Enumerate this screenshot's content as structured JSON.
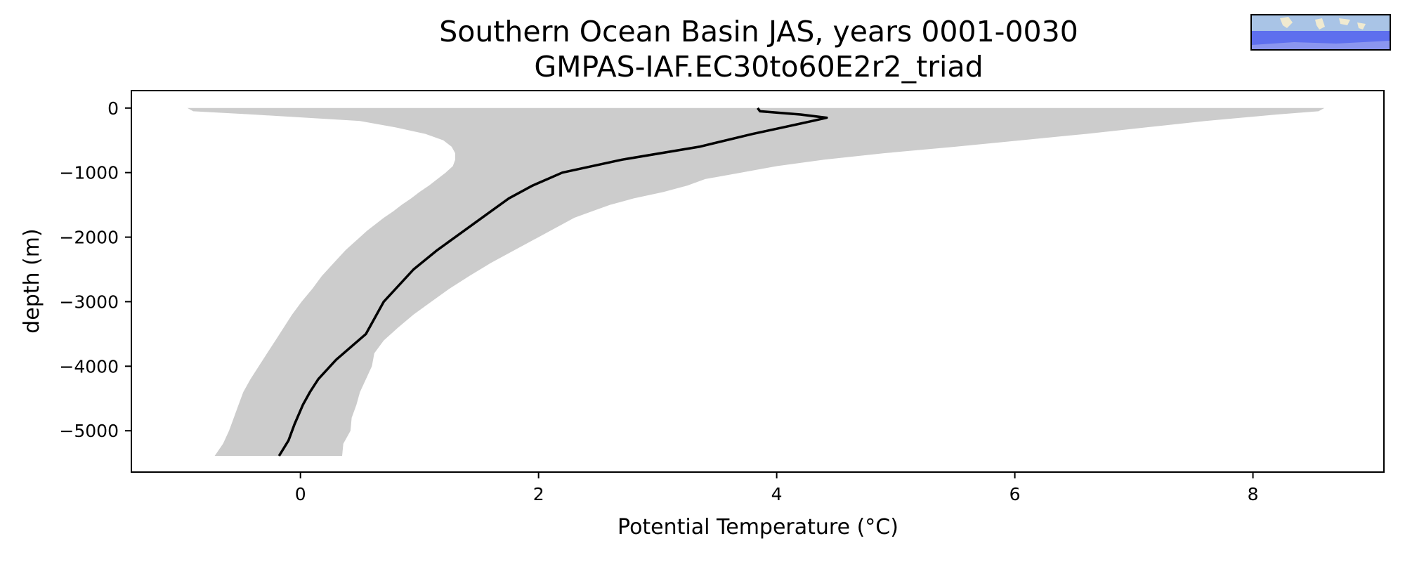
{
  "chart_data": {
    "type": "line",
    "title": "Southern Ocean Basin JAS, years 0001-0030",
    "subtitle": "GMPAS-IAF.EC30to60E2r2_triad",
    "xlabel": "Potential Temperature (°C)",
    "ylabel": "depth (m)",
    "xlim": [
      -1.42,
      9.1
    ],
    "ylim": [
      -5640,
      270
    ],
    "xticks": [
      0,
      2,
      4,
      6,
      8
    ],
    "yticks": [
      0,
      -1000,
      -2000,
      -3000,
      -4000,
      -5000
    ],
    "grid": false,
    "colors": {
      "mean_line": "#000000",
      "band": "#cccccc"
    },
    "series": [
      {
        "type": "line",
        "depth": [
          0,
          -50,
          -100,
          -150,
          -200,
          -300,
          -400,
          -600,
          -800,
          -1000,
          -1200,
          -1400,
          -1600,
          -1800,
          -2000,
          -2200,
          -2500,
          -3000,
          -3500,
          -3900,
          -4200,
          -4400,
          -4600,
          -4900,
          -5150,
          -5390
        ],
        "temperature": [
          3.84,
          3.86,
          4.2,
          4.42,
          4.3,
          4.05,
          3.8,
          3.35,
          2.7,
          2.2,
          1.95,
          1.75,
          1.6,
          1.45,
          1.3,
          1.15,
          0.95,
          0.7,
          0.55,
          0.3,
          0.15,
          0.08,
          0.02,
          -0.05,
          -0.1,
          -0.18
        ]
      },
      {
        "type": "band",
        "depth": [
          0,
          -50,
          -100,
          -200,
          -300,
          -400,
          -500,
          -600,
          -700,
          -800,
          -900,
          -1000,
          -1100,
          -1200,
          -1300,
          -1400,
          -1500,
          -1600,
          -1700,
          -1800,
          -1900,
          -2000,
          -2200,
          -2400,
          -2600,
          -2800,
          -3000,
          -3200,
          -3400,
          -3600,
          -3800,
          -4000,
          -4200,
          -4400,
          -4600,
          -4800,
          -5000,
          -5200,
          -5390
        ],
        "lower": [
          -0.95,
          -0.9,
          -0.4,
          0.5,
          0.8,
          1.05,
          1.2,
          1.27,
          1.3,
          1.3,
          1.28,
          1.22,
          1.15,
          1.08,
          1.0,
          0.93,
          0.85,
          0.78,
          0.7,
          0.63,
          0.56,
          0.5,
          0.38,
          0.28,
          0.18,
          0.1,
          0.01,
          -0.07,
          -0.14,
          -0.21,
          -0.28,
          -0.35,
          -0.42,
          -0.48,
          -0.52,
          -0.56,
          -0.6,
          -0.65,
          -0.72
        ],
        "upper": [
          8.6,
          8.55,
          8.2,
          7.6,
          7.1,
          6.6,
          6.05,
          5.5,
          4.9,
          4.4,
          4.0,
          3.7,
          3.4,
          3.25,
          3.05,
          2.8,
          2.6,
          2.45,
          2.3,
          2.2,
          2.1,
          2.0,
          1.8,
          1.6,
          1.42,
          1.25,
          1.1,
          0.95,
          0.82,
          0.7,
          0.62,
          0.6,
          0.55,
          0.5,
          0.47,
          0.43,
          0.42,
          0.36,
          0.35
        ]
      }
    ],
    "inset": {
      "description_icon": "globe-map-icon"
    }
  }
}
